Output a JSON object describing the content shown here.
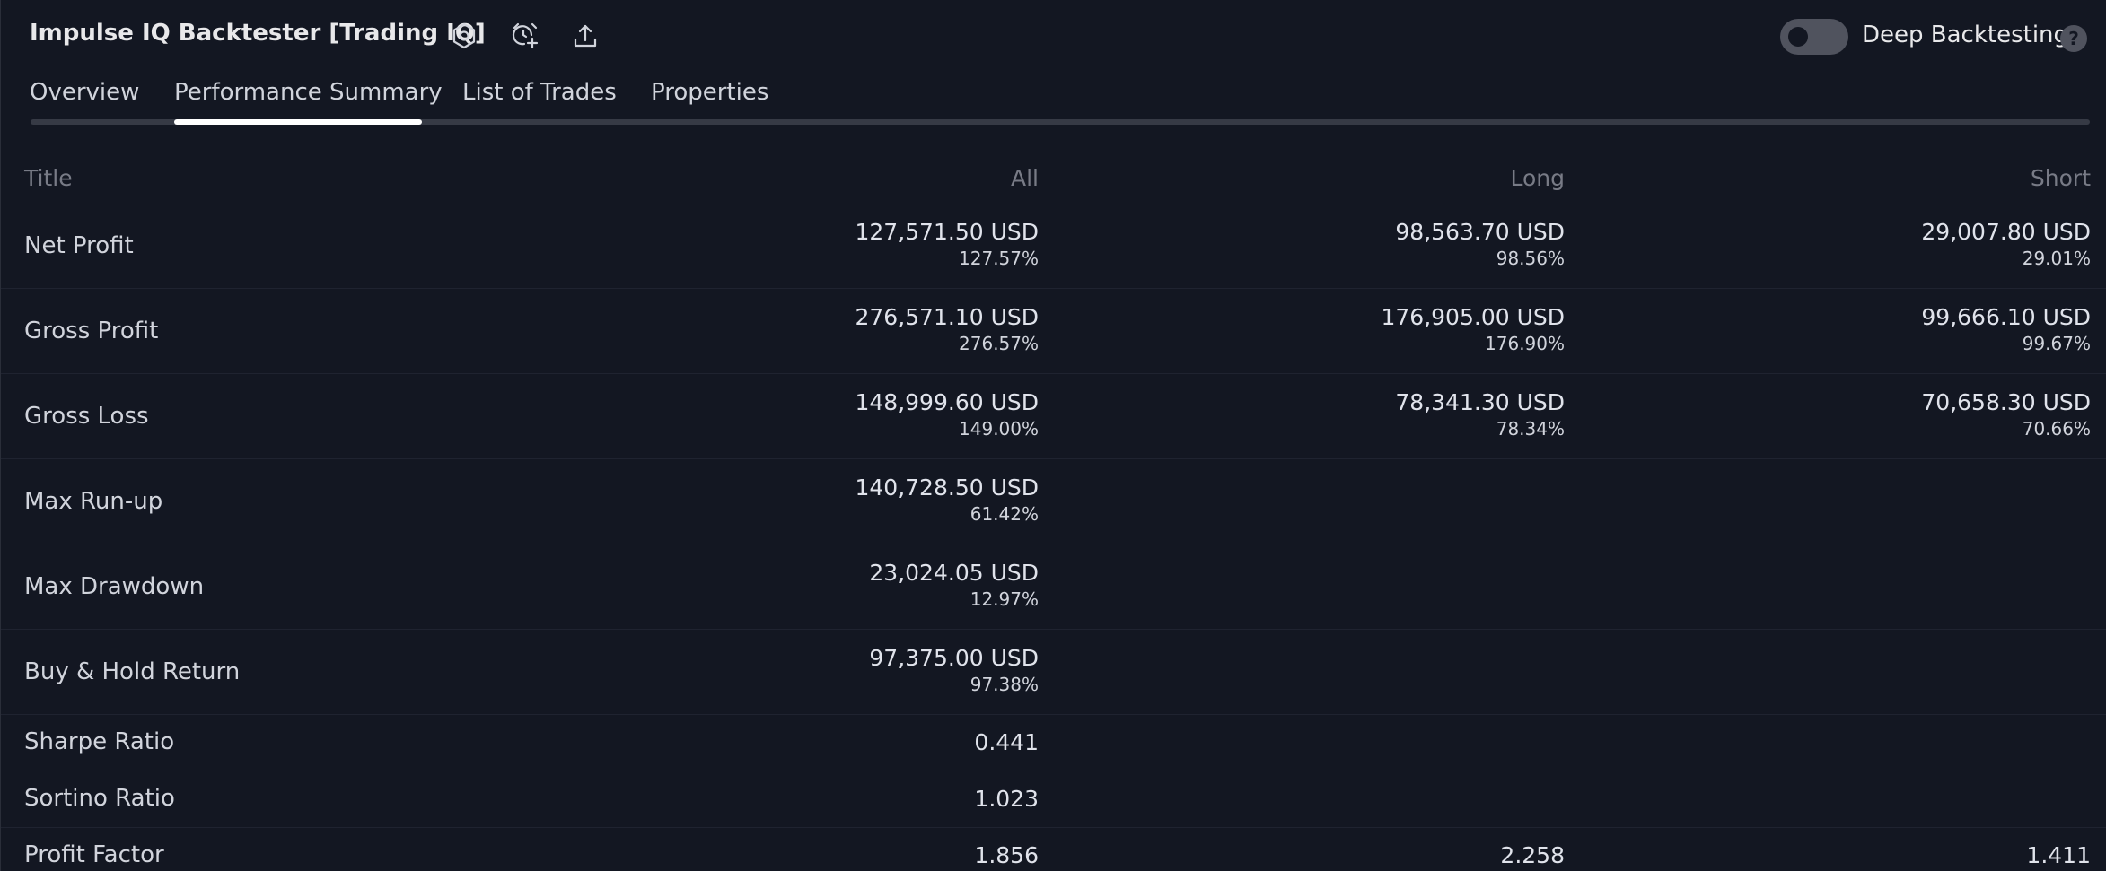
{
  "header": {
    "title": "Impulse IQ Backtester [Trading IQ]",
    "icons": [
      "settings-icon",
      "alarm-add-icon",
      "export-icon"
    ],
    "deep_backtesting_label": "Deep Backtesting",
    "deep_backtesting_enabled": false,
    "help_label": "?"
  },
  "tabs": [
    {
      "label": "Overview",
      "active": false
    },
    {
      "label": "Performance Summary",
      "active": true
    },
    {
      "label": "List of Trades",
      "active": false
    },
    {
      "label": "Properties",
      "active": false
    }
  ],
  "table": {
    "columns": [
      "Title",
      "All",
      "Long",
      "Short"
    ],
    "rows": [
      {
        "title": "Net Profit",
        "all": "127,571.50 USD",
        "all_pct": "127.57%",
        "long": "98,563.70 USD",
        "long_pct": "98.56%",
        "short": "29,007.80 USD",
        "short_pct": "29.01%"
      },
      {
        "title": "Gross Profit",
        "all": "276,571.10 USD",
        "all_pct": "276.57%",
        "long": "176,905.00 USD",
        "long_pct": "176.90%",
        "short": "99,666.10 USD",
        "short_pct": "99.67%"
      },
      {
        "title": "Gross Loss",
        "all": "148,999.60 USD",
        "all_pct": "149.00%",
        "long": "78,341.30 USD",
        "long_pct": "78.34%",
        "short": "70,658.30 USD",
        "short_pct": "70.66%"
      },
      {
        "title": "Max Run-up",
        "all": "140,728.50 USD",
        "all_pct": "61.42%"
      },
      {
        "title": "Max Drawdown",
        "all": "23,024.05 USD",
        "all_pct": "12.97%"
      },
      {
        "title": "Buy & Hold Return",
        "all": "97,375.00 USD",
        "all_pct": "97.38%"
      },
      {
        "title": "Sharpe Ratio",
        "all": "0.441"
      },
      {
        "title": "Sortino Ratio",
        "all": "1.023"
      },
      {
        "title": "Profit Factor",
        "all": "1.856",
        "long": "2.258",
        "short": "1.411"
      }
    ]
  },
  "colors": {
    "background": "#131722",
    "text": "#d1d4dc",
    "muted": "#787b86",
    "active_tab_indicator": "#ffffff",
    "toggle_off": "#50535e"
  }
}
